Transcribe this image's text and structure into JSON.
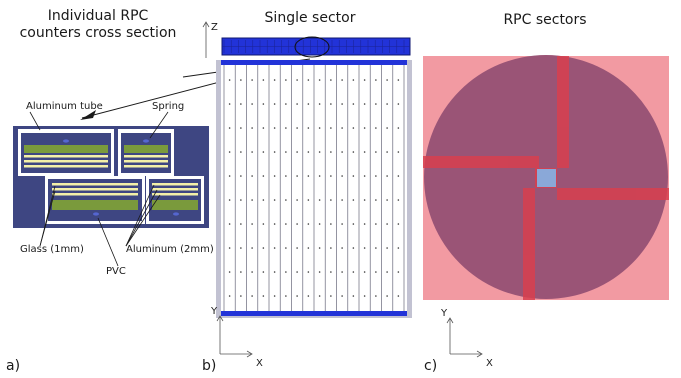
{
  "panel_a": {
    "title_line1": "Individual RPC",
    "title_line2": "counters cross section",
    "labels": {
      "aluminum_tube": "Aluminum tube",
      "spring": "Spring",
      "glass": "Glass (1mm)",
      "aluminum_2mm": "Aluminum (2mm)",
      "pvc": "PVC"
    },
    "panel_label": "a)"
  },
  "panel_b": {
    "title": "Single sector",
    "axis_z": "Z",
    "axis_y": "Y",
    "axis_x": "X",
    "panel_label": "b)"
  },
  "panel_c": {
    "title": "RPC sectors",
    "axis_y": "Y",
    "axis_x": "X",
    "panel_label": "c)"
  },
  "colors": {
    "steel_blue": "#3e4682",
    "counter_green": "#7a9a3c",
    "glass_yellow": "#f4f0a8",
    "rpc_blue": "#2233d8",
    "sector_pink": "#f29aa2",
    "disk_purple": "#9a5476",
    "bar_red": "#d8404f",
    "center_blue": "#8aa8d8"
  }
}
